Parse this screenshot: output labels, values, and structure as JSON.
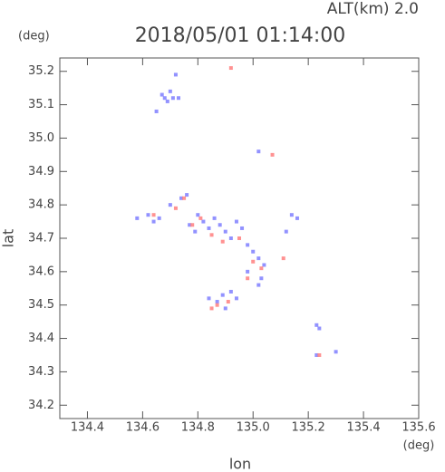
{
  "chart_data": {
    "type": "scatter",
    "title": "2018/05/01 01:14:00",
    "annotation": "ALT(km) 2.0",
    "y_unit": "(deg)",
    "x_unit": "(deg)",
    "xlabel": "lon",
    "ylabel": "lat",
    "xlim": [
      134.3,
      135.6
    ],
    "ylim": [
      34.16,
      35.24
    ],
    "xticks": [
      134.4,
      134.6,
      134.8,
      {
        "value": 135,
        "label": "135.0"
      },
      135.2,
      135.4,
      135.6
    ],
    "yticks": [
      34.2,
      34.3,
      34.4,
      34.5,
      34.6,
      34.7,
      34.8,
      34.9,
      {
        "value": 35,
        "label": "35.0"
      },
      35.1,
      35.2
    ],
    "series": [
      {
        "color": "#7f7fff",
        "x": [
          134.67,
          134.68,
          134.7,
          134.69,
          134.71,
          134.72,
          134.73,
          134.65,
          135.02,
          134.58,
          134.62,
          134.64,
          134.66,
          134.7,
          134.74,
          134.76,
          134.77,
          134.79,
          134.8,
          134.82,
          134.84,
          134.86,
          134.88,
          134.9,
          134.92,
          134.94,
          134.96,
          134.98,
          135.0,
          135.02,
          135.04,
          135.03,
          134.98,
          135.02,
          134.87,
          134.89,
          134.92,
          134.94,
          134.9,
          134.84,
          135.12,
          135.14,
          135.16,
          135.23,
          135.24,
          135.23,
          135.3
        ],
        "y": [
          35.13,
          35.12,
          35.14,
          35.11,
          35.12,
          35.19,
          35.12,
          35.08,
          34.96,
          34.76,
          34.77,
          34.75,
          34.76,
          34.8,
          34.82,
          34.83,
          34.74,
          34.72,
          34.77,
          34.75,
          34.73,
          34.76,
          34.74,
          34.72,
          34.7,
          34.75,
          34.73,
          34.68,
          34.66,
          34.64,
          34.62,
          34.58,
          34.6,
          34.56,
          34.51,
          34.53,
          34.54,
          34.52,
          34.49,
          34.52,
          34.72,
          34.77,
          34.76,
          34.44,
          34.43,
          34.35,
          34.36
        ]
      },
      {
        "color": "#ff7f7f",
        "x": [
          134.92,
          135.07,
          134.64,
          134.72,
          134.75,
          134.78,
          134.81,
          134.85,
          134.89,
          134.95,
          135.0,
          135.03,
          134.98,
          134.87,
          134.91,
          134.85,
          135.11,
          135.24
        ],
        "y": [
          35.21,
          34.95,
          34.77,
          34.79,
          34.82,
          34.74,
          34.76,
          34.71,
          34.69,
          34.7,
          34.63,
          34.61,
          34.58,
          34.5,
          34.51,
          34.49,
          34.64,
          34.35
        ]
      }
    ]
  }
}
